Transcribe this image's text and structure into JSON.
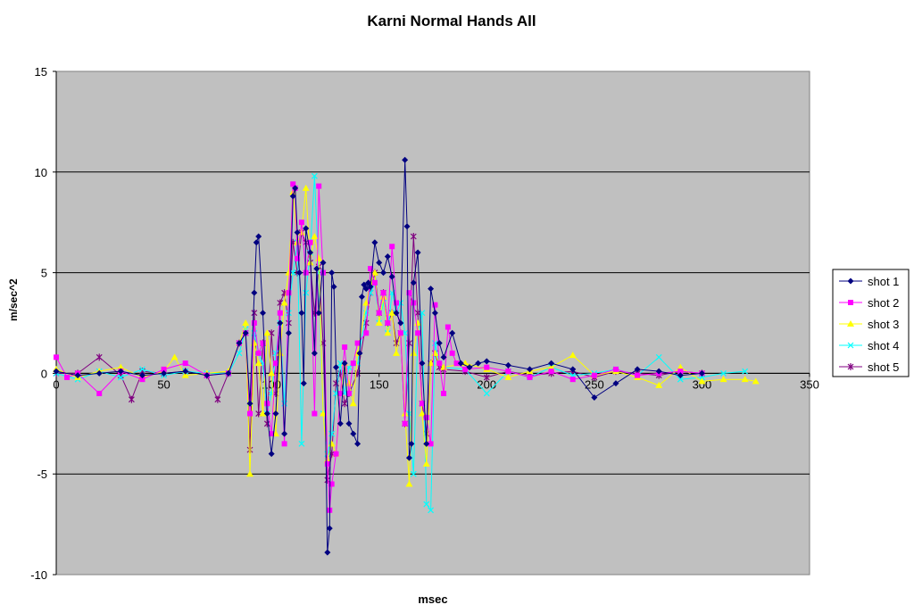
{
  "chart_data": {
    "type": "line",
    "title": "Karni Normal Hands All",
    "xlabel": "msec",
    "ylabel": "m/sec^2",
    "xlim": [
      0,
      350
    ],
    "ylim": [
      -10,
      15
    ],
    "x_ticks": [
      0,
      50,
      100,
      150,
      200,
      250,
      300,
      350
    ],
    "y_ticks": [
      -10,
      -5,
      0,
      5,
      10,
      15
    ],
    "grid": "horizontal",
    "plot_background": "#c0c0c0",
    "legend_position": "right",
    "series": [
      {
        "name": "shot 1",
        "color": "#000080",
        "marker": "diamond",
        "x": [
          0,
          10,
          20,
          30,
          40,
          50,
          60,
          70,
          80,
          85,
          88,
          90,
          92,
          93,
          94,
          96,
          98,
          100,
          102,
          104,
          106,
          108,
          110,
          111,
          112,
          113,
          114,
          115,
          116,
          118,
          120,
          121,
          122,
          124,
          126,
          127,
          128,
          129,
          130,
          132,
          134,
          136,
          138,
          140,
          141,
          142,
          143,
          144,
          145,
          146,
          148,
          150,
          152,
          154,
          156,
          158,
          160,
          162,
          163,
          164,
          165,
          166,
          168,
          170,
          172,
          174,
          176,
          178,
          180,
          184,
          188,
          192,
          196,
          200,
          210,
          220,
          230,
          240,
          250,
          260,
          270,
          280,
          290,
          300
        ],
        "y": [
          0.1,
          -0.1,
          0.0,
          0.1,
          -0.1,
          0.0,
          0.1,
          -0.1,
          0.0,
          1.5,
          2.0,
          -1.5,
          4.0,
          6.5,
          6.8,
          3.0,
          -2.0,
          -4.0,
          -2.0,
          2.5,
          -3.0,
          2.0,
          8.8,
          9.2,
          7.0,
          5.0,
          3.0,
          -0.5,
          7.2,
          6.0,
          1.0,
          5.2,
          3.0,
          5.5,
          -8.9,
          -7.7,
          5.0,
          4.3,
          0.3,
          -2.5,
          0.5,
          -2.5,
          -3.0,
          -3.5,
          1.0,
          3.8,
          4.4,
          4.2,
          4.5,
          4.3,
          6.5,
          5.5,
          5.0,
          5.8,
          4.8,
          3.0,
          2.5,
          10.6,
          7.3,
          -4.2,
          -3.5,
          4.5,
          6.0,
          0.5,
          -3.5,
          4.2,
          3.0,
          1.5,
          0.8,
          2.0,
          0.5,
          0.3,
          0.5,
          0.6,
          0.4,
          0.2,
          0.5,
          0.2,
          -1.2,
          -0.5,
          0.2,
          0.1,
          -0.1,
          0.0
        ]
      },
      {
        "name": "shot 2",
        "color": "#ff00ff",
        "marker": "square",
        "x": [
          0,
          5,
          10,
          20,
          30,
          40,
          50,
          60,
          70,
          80,
          85,
          88,
          90,
          92,
          94,
          96,
          98,
          100,
          102,
          104,
          106,
          108,
          110,
          111,
          112,
          114,
          116,
          118,
          120,
          122,
          124,
          126,
          127,
          128,
          130,
          132,
          134,
          136,
          138,
          140,
          144,
          146,
          148,
          150,
          152,
          154,
          156,
          158,
          160,
          162,
          164,
          166,
          168,
          170,
          172,
          174,
          176,
          178,
          180,
          182,
          184,
          186,
          190,
          200,
          210,
          220,
          230,
          240,
          250,
          260,
          270,
          280,
          290,
          300
        ],
        "y": [
          0.8,
          -0.2,
          0.0,
          -1.0,
          0.1,
          -0.3,
          0.2,
          0.5,
          -0.1,
          0.0,
          1.5,
          2.0,
          -2.0,
          2.5,
          1.0,
          1.5,
          -1.5,
          -3.0,
          0.5,
          3.0,
          -3.5,
          4.0,
          9.4,
          9.2,
          5.7,
          7.5,
          5.0,
          6.5,
          -2.0,
          9.3,
          5.0,
          -4.5,
          -6.8,
          -5.5,
          -4.0,
          -1.0,
          1.3,
          -1.0,
          0.5,
          1.5,
          2.0,
          5.2,
          4.5,
          3.0,
          4.0,
          2.5,
          6.3,
          3.5,
          2.0,
          -2.5,
          4.0,
          3.5,
          2.0,
          -1.5,
          -2.2,
          -3.5,
          3.4,
          0.5,
          -1.0,
          2.3,
          1.0,
          0.5,
          0.2,
          0.3,
          0.1,
          -0.2,
          0.1,
          -0.3,
          -0.1,
          0.2,
          -0.1,
          0.0,
          0.1,
          0.0
        ]
      },
      {
        "name": "shot 3",
        "color": "#ffff00",
        "marker": "triangle",
        "x": [
          0,
          10,
          20,
          30,
          40,
          50,
          55,
          60,
          70,
          80,
          85,
          88,
          90,
          92,
          94,
          96,
          98,
          100,
          102,
          104,
          106,
          108,
          110,
          112,
          114,
          116,
          118,
          120,
          122,
          124,
          126,
          128,
          130,
          132,
          134,
          136,
          138,
          140,
          144,
          146,
          148,
          150,
          152,
          154,
          156,
          158,
          160,
          162,
          164,
          166,
          168,
          170,
          172,
          174,
          176,
          178,
          180,
          190,
          200,
          210,
          220,
          230,
          240,
          250,
          260,
          270,
          280,
          290,
          300,
          310,
          320,
          325
        ],
        "y": [
          0.2,
          -0.2,
          0.1,
          0.3,
          -0.2,
          0.1,
          0.8,
          -0.1,
          0.0,
          0.1,
          1.5,
          2.5,
          -5.0,
          1.5,
          0.5,
          -2.0,
          2.0,
          0.0,
          -3.0,
          1.0,
          3.5,
          5.0,
          9.0,
          6.5,
          7.0,
          9.2,
          5.5,
          6.8,
          5.7,
          -2.0,
          -4.3,
          -3.5,
          -4.0,
          -1.0,
          0.5,
          -0.5,
          -1.5,
          1.0,
          3.5,
          4.5,
          5.0,
          2.5,
          3.8,
          2.0,
          3.0,
          1.0,
          2.0,
          -2.0,
          -5.5,
          1.0,
          2.5,
          -2.0,
          -4.5,
          0.5,
          1.0,
          0.5,
          0.3,
          0.5,
          0.2,
          -0.2,
          0.1,
          0.3,
          0.9,
          -0.1,
          0.1,
          -0.2,
          -0.6,
          0.3,
          -0.4,
          -0.3,
          -0.3,
          -0.4
        ]
      },
      {
        "name": "shot 4",
        "color": "#00ffff",
        "marker": "x",
        "x": [
          0,
          10,
          20,
          30,
          40,
          50,
          60,
          70,
          80,
          85,
          88,
          90,
          92,
          94,
          96,
          98,
          100,
          102,
          104,
          106,
          108,
          110,
          112,
          114,
          116,
          118,
          120,
          122,
          124,
          126,
          128,
          130,
          132,
          134,
          136,
          140,
          144,
          146,
          148,
          150,
          152,
          154,
          156,
          158,
          160,
          162,
          164,
          166,
          168,
          170,
          172,
          174,
          176,
          178,
          180,
          190,
          200,
          210,
          220,
          230,
          240,
          250,
          260,
          270,
          280,
          290,
          300,
          310,
          320
        ],
        "y": [
          0.0,
          -0.3,
          0.1,
          -0.2,
          0.2,
          -0.1,
          0.1,
          0.0,
          0.0,
          1.0,
          2.2,
          -1.5,
          2.0,
          1.0,
          0.5,
          -2.0,
          -1.0,
          1.0,
          2.5,
          -1.5,
          3.0,
          5.0,
          6.5,
          -3.5,
          4.0,
          6.0,
          9.8,
          5.0,
          -2.0,
          -4.0,
          -3.0,
          -1.0,
          0.5,
          -1.0,
          0.3,
          0.5,
          3.0,
          4.0,
          4.5,
          2.5,
          3.5,
          2.0,
          4.0,
          3.0,
          3.5,
          2.0,
          -2.0,
          -5.0,
          2.0,
          3.0,
          -6.5,
          -6.8,
          1.5,
          0.5,
          0.3,
          0.2,
          -1.0,
          0.1,
          -0.2,
          0.3,
          -0.1,
          0.0,
          0.2,
          -0.1,
          0.8,
          -0.3,
          -0.2,
          0.0,
          0.1
        ]
      },
      {
        "name": "shot 5",
        "color": "#800080",
        "marker": "star",
        "x": [
          0,
          10,
          20,
          30,
          35,
          40,
          50,
          60,
          70,
          75,
          80,
          85,
          88,
          90,
          92,
          94,
          96,
          98,
          100,
          102,
          104,
          106,
          108,
          110,
          112,
          114,
          116,
          118,
          120,
          122,
          124,
          126,
          128,
          130,
          132,
          134,
          136,
          140,
          144,
          146,
          148,
          150,
          152,
          154,
          156,
          158,
          160,
          162,
          164,
          166,
          168,
          170,
          172,
          174,
          176,
          178,
          180,
          190,
          200,
          210,
          220,
          230,
          240,
          250,
          260,
          270,
          280,
          290,
          300
        ],
        "y": [
          0.0,
          0.0,
          0.8,
          -0.1,
          -1.3,
          0.1,
          0.0,
          0.1,
          -0.1,
          -1.3,
          0.0,
          1.5,
          2.0,
          -3.8,
          3.0,
          -2.0,
          1.5,
          -2.5,
          2.0,
          -1.0,
          3.5,
          4.0,
          2.5,
          6.5,
          5.0,
          7.0,
          6.5,
          5.5,
          3.0,
          5.3,
          1.5,
          -5.3,
          -4.0,
          -0.5,
          0.0,
          -1.5,
          -1.0,
          0.0,
          2.5,
          4.0,
          5.0,
          3.0,
          4.0,
          2.5,
          3.0,
          1.5,
          2.0,
          -2.5,
          1.5,
          6.8,
          3.0,
          -1.5,
          -3.0,
          0.5,
          1.0,
          0.3,
          0.2,
          0.1,
          -0.2,
          0.1,
          -0.1,
          0.0,
          0.1,
          -0.2,
          0.1,
          0.0,
          -0.1,
          0.1,
          0.0
        ]
      }
    ]
  }
}
